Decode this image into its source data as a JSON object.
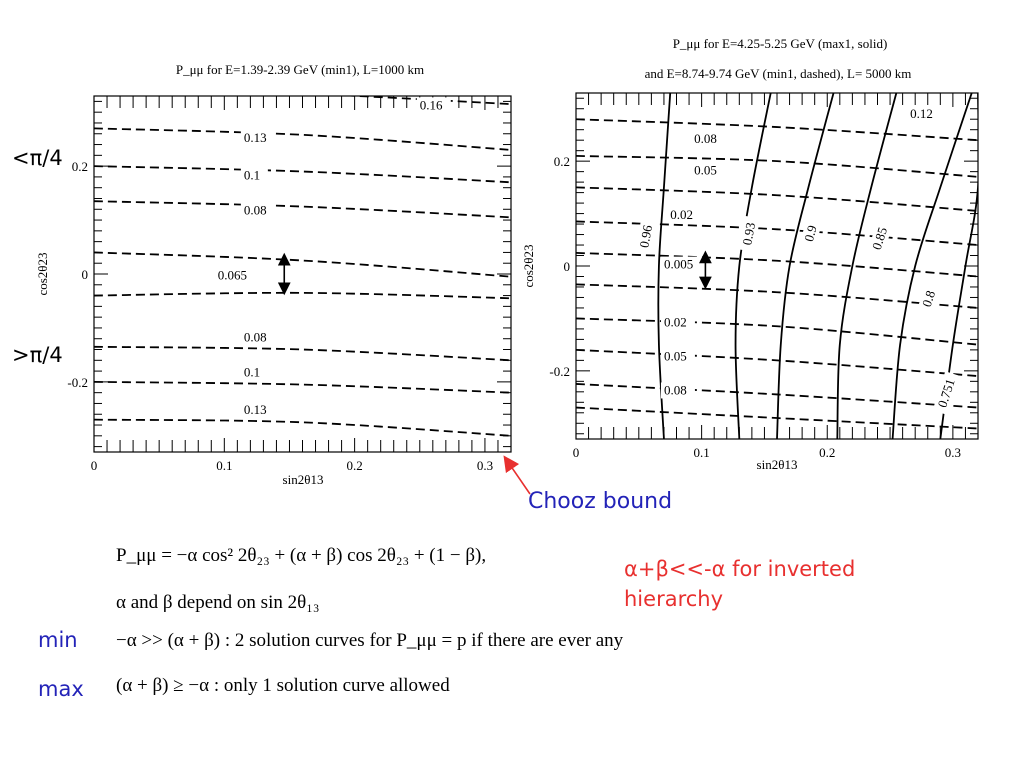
{
  "colors": {
    "note": "#e8302f",
    "minmax": "#2323b8",
    "arrow": "#e8302f"
  },
  "annotations": {
    "lt_pi4": "<π/4",
    "gt_pi4": ">π/4",
    "chooz": "Chooz bound"
  },
  "red_note": {
    "line1": "α+β<<-α for inverted",
    "line2": "hierarchy"
  },
  "equations": {
    "line1": "P_μμ = −α cos² 2θ₂₃ + (α + β) cos 2θ₂₃ + (1 − β),",
    "line2": "α and β depend  on sin 2θ₁₃",
    "line3": "−α >> (α + β) : 2 solution curves for P_μμ = p  if there  are ever  any",
    "line4": "(α + β) ≥ −α : only 1 solution  curve allowed"
  },
  "row_labels": {
    "min": "min",
    "max": "max"
  },
  "chart_data": [
    {
      "type": "line",
      "title_line1": "P_μμ for E=1.39-2.39 GeV (min1), L=1000 km",
      "xlabel": "sin2θ13",
      "ylabel": "cos2θ23",
      "xlim": [
        0,
        0.32
      ],
      "ylim": [
        -0.33,
        0.33
      ],
      "xticks": [
        "0",
        "0.1",
        "0.2",
        "0.3"
      ],
      "yticks": [
        "-0.2",
        "0",
        "0.2"
      ],
      "series": [
        {
          "label": "0.16",
          "style": "dashed",
          "x": [
            0,
            0.16,
            0.32
          ],
          "y": [
            0.35,
            0.335,
            0.315
          ]
        },
        {
          "label": "0.13",
          "style": "dashed",
          "x": [
            0,
            0.16,
            0.32
          ],
          "y": [
            0.27,
            0.258,
            0.23
          ]
        },
        {
          "label": "0.1",
          "style": "dashed",
          "x": [
            0,
            0.16,
            0.32
          ],
          "y": [
            0.2,
            0.19,
            0.17
          ]
        },
        {
          "label": "0.08",
          "style": "dashed",
          "x": [
            0,
            0.16,
            0.32
          ],
          "y": [
            0.135,
            0.125,
            0.105
          ]
        },
        {
          "label": "0.065",
          "style": "dashed",
          "x": [
            0,
            0.16,
            0.32
          ],
          "y": [
            0.04,
            0.025,
            -0.005
          ]
        },
        {
          "label": "",
          "style": "dashed",
          "x": [
            0,
            0.16,
            0.32
          ],
          "y": [
            -0.04,
            -0.035,
            -0.045
          ]
        },
        {
          "label": "0.08",
          "style": "dashed",
          "x": [
            0,
            0.16,
            0.32
          ],
          "y": [
            -0.135,
            -0.14,
            -0.16
          ]
        },
        {
          "label": "0.1",
          "style": "dashed",
          "x": [
            0,
            0.16,
            0.32
          ],
          "y": [
            -0.2,
            -0.205,
            -0.22
          ]
        },
        {
          "label": "0.13",
          "style": "dashed",
          "x": [
            0,
            0.16,
            0.32
          ],
          "y": [
            -0.27,
            -0.275,
            -0.3
          ]
        }
      ],
      "curve_labels": [
        {
          "text": "0.16",
          "x": 0.25,
          "y": 0.305
        },
        {
          "text": "0.13",
          "x": 0.115,
          "y": 0.245
        },
        {
          "text": "0.1",
          "x": 0.115,
          "y": 0.175
        },
        {
          "text": "0.08",
          "x": 0.115,
          "y": 0.11
        },
        {
          "text": "0.065",
          "x": 0.095,
          "y": -0.01
        },
        {
          "text": "0.08",
          "x": 0.115,
          "y": -0.125
        },
        {
          "text": "0.1",
          "x": 0.115,
          "y": -0.19
        },
        {
          "text": "0.13",
          "x": 0.115,
          "y": -0.26
        }
      ],
      "double_arrow": {
        "x": 0.146,
        "y1": 0.035,
        "y2": -0.035
      }
    },
    {
      "type": "line",
      "title_line1": "P_μμ for E=4.25-5.25 GeV (max1, solid)",
      "title_line2": "and E=8.74-9.74 GeV (min1, dashed), L= 5000 km",
      "xlabel": "sin2θ13",
      "ylabel": "cos2θ23",
      "xlim": [
        0,
        0.32
      ],
      "ylim": [
        -0.33,
        0.33
      ],
      "xticks": [
        "0",
        "0.1",
        "0.2",
        "0.3"
      ],
      "yticks": [
        "-0.2",
        "0",
        "0.2"
      ],
      "dashed_series": [
        {
          "label": "0.12",
          "x": [
            0,
            0.16,
            0.32
          ],
          "y": [
            0.28,
            0.265,
            0.24
          ]
        },
        {
          "label": "0.08",
          "x": [
            0,
            0.16,
            0.32
          ],
          "y": [
            0.21,
            0.2,
            0.17
          ]
        },
        {
          "label": "0.05",
          "x": [
            0,
            0.16,
            0.32
          ],
          "y": [
            0.15,
            0.135,
            0.105
          ]
        },
        {
          "label": "0.02",
          "x": [
            0,
            0.16,
            0.32
          ],
          "y": [
            0.085,
            0.07,
            0.04
          ]
        },
        {
          "label": "0.005",
          "x": [
            0,
            0.16,
            0.32
          ],
          "y": [
            0.025,
            0.01,
            -0.02
          ]
        },
        {
          "label": "",
          "x": [
            0,
            0.16,
            0.32
          ],
          "y": [
            -0.035,
            -0.05,
            -0.08
          ]
        },
        {
          "label": "0.02",
          "x": [
            0,
            0.16,
            0.32
          ],
          "y": [
            -0.1,
            -0.115,
            -0.15
          ]
        },
        {
          "label": "0.05",
          "x": [
            0,
            0.16,
            0.32
          ],
          "y": [
            -0.16,
            -0.18,
            -0.21
          ]
        },
        {
          "label": "0.08",
          "x": [
            0,
            0.16,
            0.32
          ],
          "y": [
            -0.225,
            -0.245,
            -0.27
          ]
        },
        {
          "label": "",
          "x": [
            0,
            0.16,
            0.32
          ],
          "y": [
            -0.27,
            -0.29,
            -0.31
          ]
        }
      ],
      "solid_series": [
        {
          "label": "0.96",
          "x": [
            0.075,
            0.07,
            0.066,
            0.066,
            0.07
          ],
          "y": [
            0.33,
            0.15,
            0,
            -0.15,
            -0.33
          ]
        },
        {
          "label": "0.93",
          "x": [
            0.155,
            0.14,
            0.13,
            0.127,
            0.13
          ],
          "y": [
            0.33,
            0.15,
            0,
            -0.15,
            -0.33
          ]
        },
        {
          "label": "0.9",
          "x": [
            0.205,
            0.185,
            0.17,
            0.163,
            0.16
          ],
          "y": [
            0.33,
            0.15,
            0,
            -0.15,
            -0.33
          ]
        },
        {
          "label": "0.85",
          "x": [
            0.255,
            0.235,
            0.22,
            0.21,
            0.208
          ],
          "y": [
            0.33,
            0.15,
            0,
            -0.15,
            -0.33
          ]
        },
        {
          "label": "0.8",
          "x": [
            0.315,
            0.29,
            0.27,
            0.258,
            0.252
          ],
          "y": [
            0.33,
            0.15,
            0,
            -0.15,
            -0.33
          ]
        },
        {
          "label": "0.751",
          "x": [
            0.32,
            0.32,
            0.31,
            0.3,
            0.29
          ],
          "y": [
            0.33,
            0.15,
            0,
            -0.15,
            -0.33
          ]
        }
      ],
      "curve_labels": [
        {
          "text": "0.12",
          "x": 0.266,
          "y": 0.282
        },
        {
          "text": "0.08",
          "x": 0.094,
          "y": 0.235
        },
        {
          "text": "0.05",
          "x": 0.094,
          "y": 0.175
        },
        {
          "text": "0.02",
          "x": 0.075,
          "y": 0.09
        },
        {
          "text": "0.005",
          "x": 0.07,
          "y": -0.005
        },
        {
          "text": "0.02",
          "x": 0.07,
          "y": -0.115
        },
        {
          "text": "0.05",
          "x": 0.07,
          "y": -0.18
        },
        {
          "text": "0.08",
          "x": 0.07,
          "y": -0.245
        }
      ],
      "solid_labels": [
        {
          "text": "0.96",
          "x": 0.059,
          "y": 0.055,
          "rot": -80
        },
        {
          "text": "0.93",
          "x": 0.141,
          "y": 0.06,
          "rot": -80
        },
        {
          "text": "0.9",
          "x": 0.19,
          "y": 0.06,
          "rot": -75
        },
        {
          "text": "0.85",
          "x": 0.245,
          "y": 0.05,
          "rot": -72
        },
        {
          "text": "0.8",
          "x": 0.284,
          "y": -0.065,
          "rot": -72
        },
        {
          "text": "0.751",
          "x": 0.298,
          "y": -0.245,
          "rot": -72
        }
      ],
      "double_arrow": {
        "x": 0.103,
        "y1": 0.025,
        "y2": -0.04
      }
    }
  ]
}
